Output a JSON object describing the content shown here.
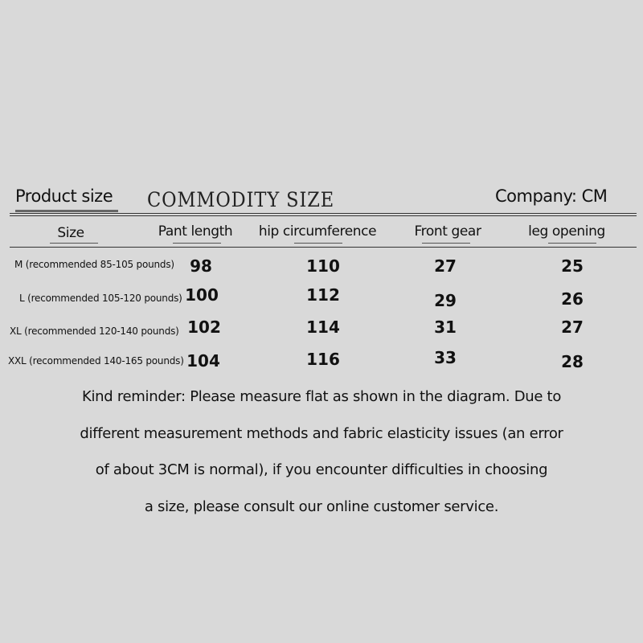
{
  "header": {
    "product_size": "Product size",
    "commodity_size": "COMMODITY SIZE",
    "unit": "Company: CM"
  },
  "columns": [
    "Size",
    "Pant length",
    "hip circumference",
    "Front gear",
    "leg opening"
  ],
  "rows": [
    {
      "size": "M (recommended 85-105 pounds)",
      "values": [
        "98",
        "110",
        "27",
        "25"
      ]
    },
    {
      "size": "L (recommended 105-120 pounds)",
      "values": [
        "100",
        "112",
        "29",
        "26"
      ]
    },
    {
      "size": "XL (recommended 120-140 pounds)",
      "values": [
        "102",
        "114",
        "31",
        "27"
      ]
    },
    {
      "size": "XXL (recommended 140-165 pounds)",
      "values": [
        "104",
        "116",
        "33",
        "28"
      ]
    }
  ],
  "reminder": [
    "Kind reminder: Please measure flat as shown in the diagram. Due to",
    "different measurement methods and fabric elasticity issues (an error",
    "of about 3CM is normal), if you encounter difficulties in choosing",
    "a size, please consult our online customer service."
  ]
}
